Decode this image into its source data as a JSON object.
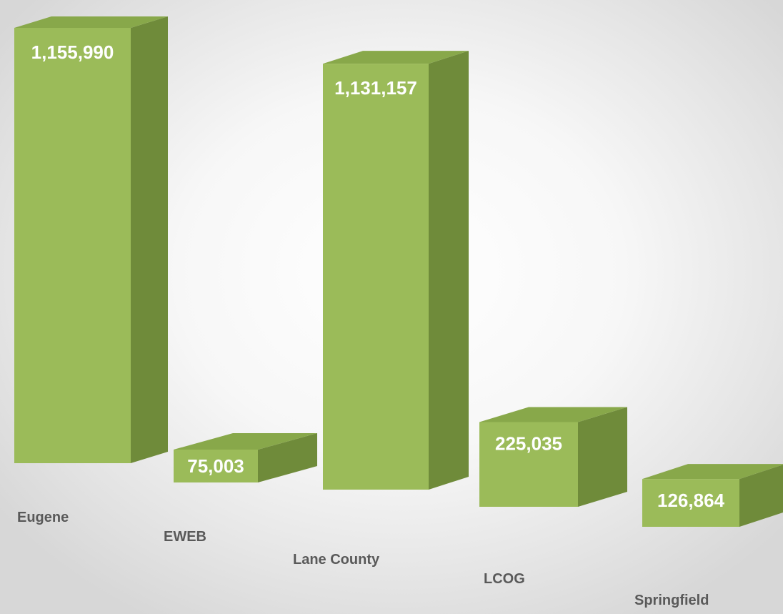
{
  "chart_data": {
    "type": "bar",
    "style": "3d-column",
    "categories": [
      "Eugene",
      "EWEB",
      "Lane County",
      "LCOG",
      "Springfield"
    ],
    "values": [
      1155990,
      75003,
      1131157,
      225035,
      126864
    ],
    "value_labels": [
      "1,155,990",
      "75,003",
      "1,131,157",
      "225,035",
      "126,864"
    ],
    "title": "",
    "xlabel": "",
    "ylabel": "",
    "ylim": [
      0,
      1200000
    ],
    "grid": false,
    "legend": "none",
    "colors": {
      "front": "#9bbb59",
      "top": "#88a84a",
      "side": "#6f8b3a",
      "value_text": "#ffffff",
      "category_text": "#595959"
    }
  }
}
